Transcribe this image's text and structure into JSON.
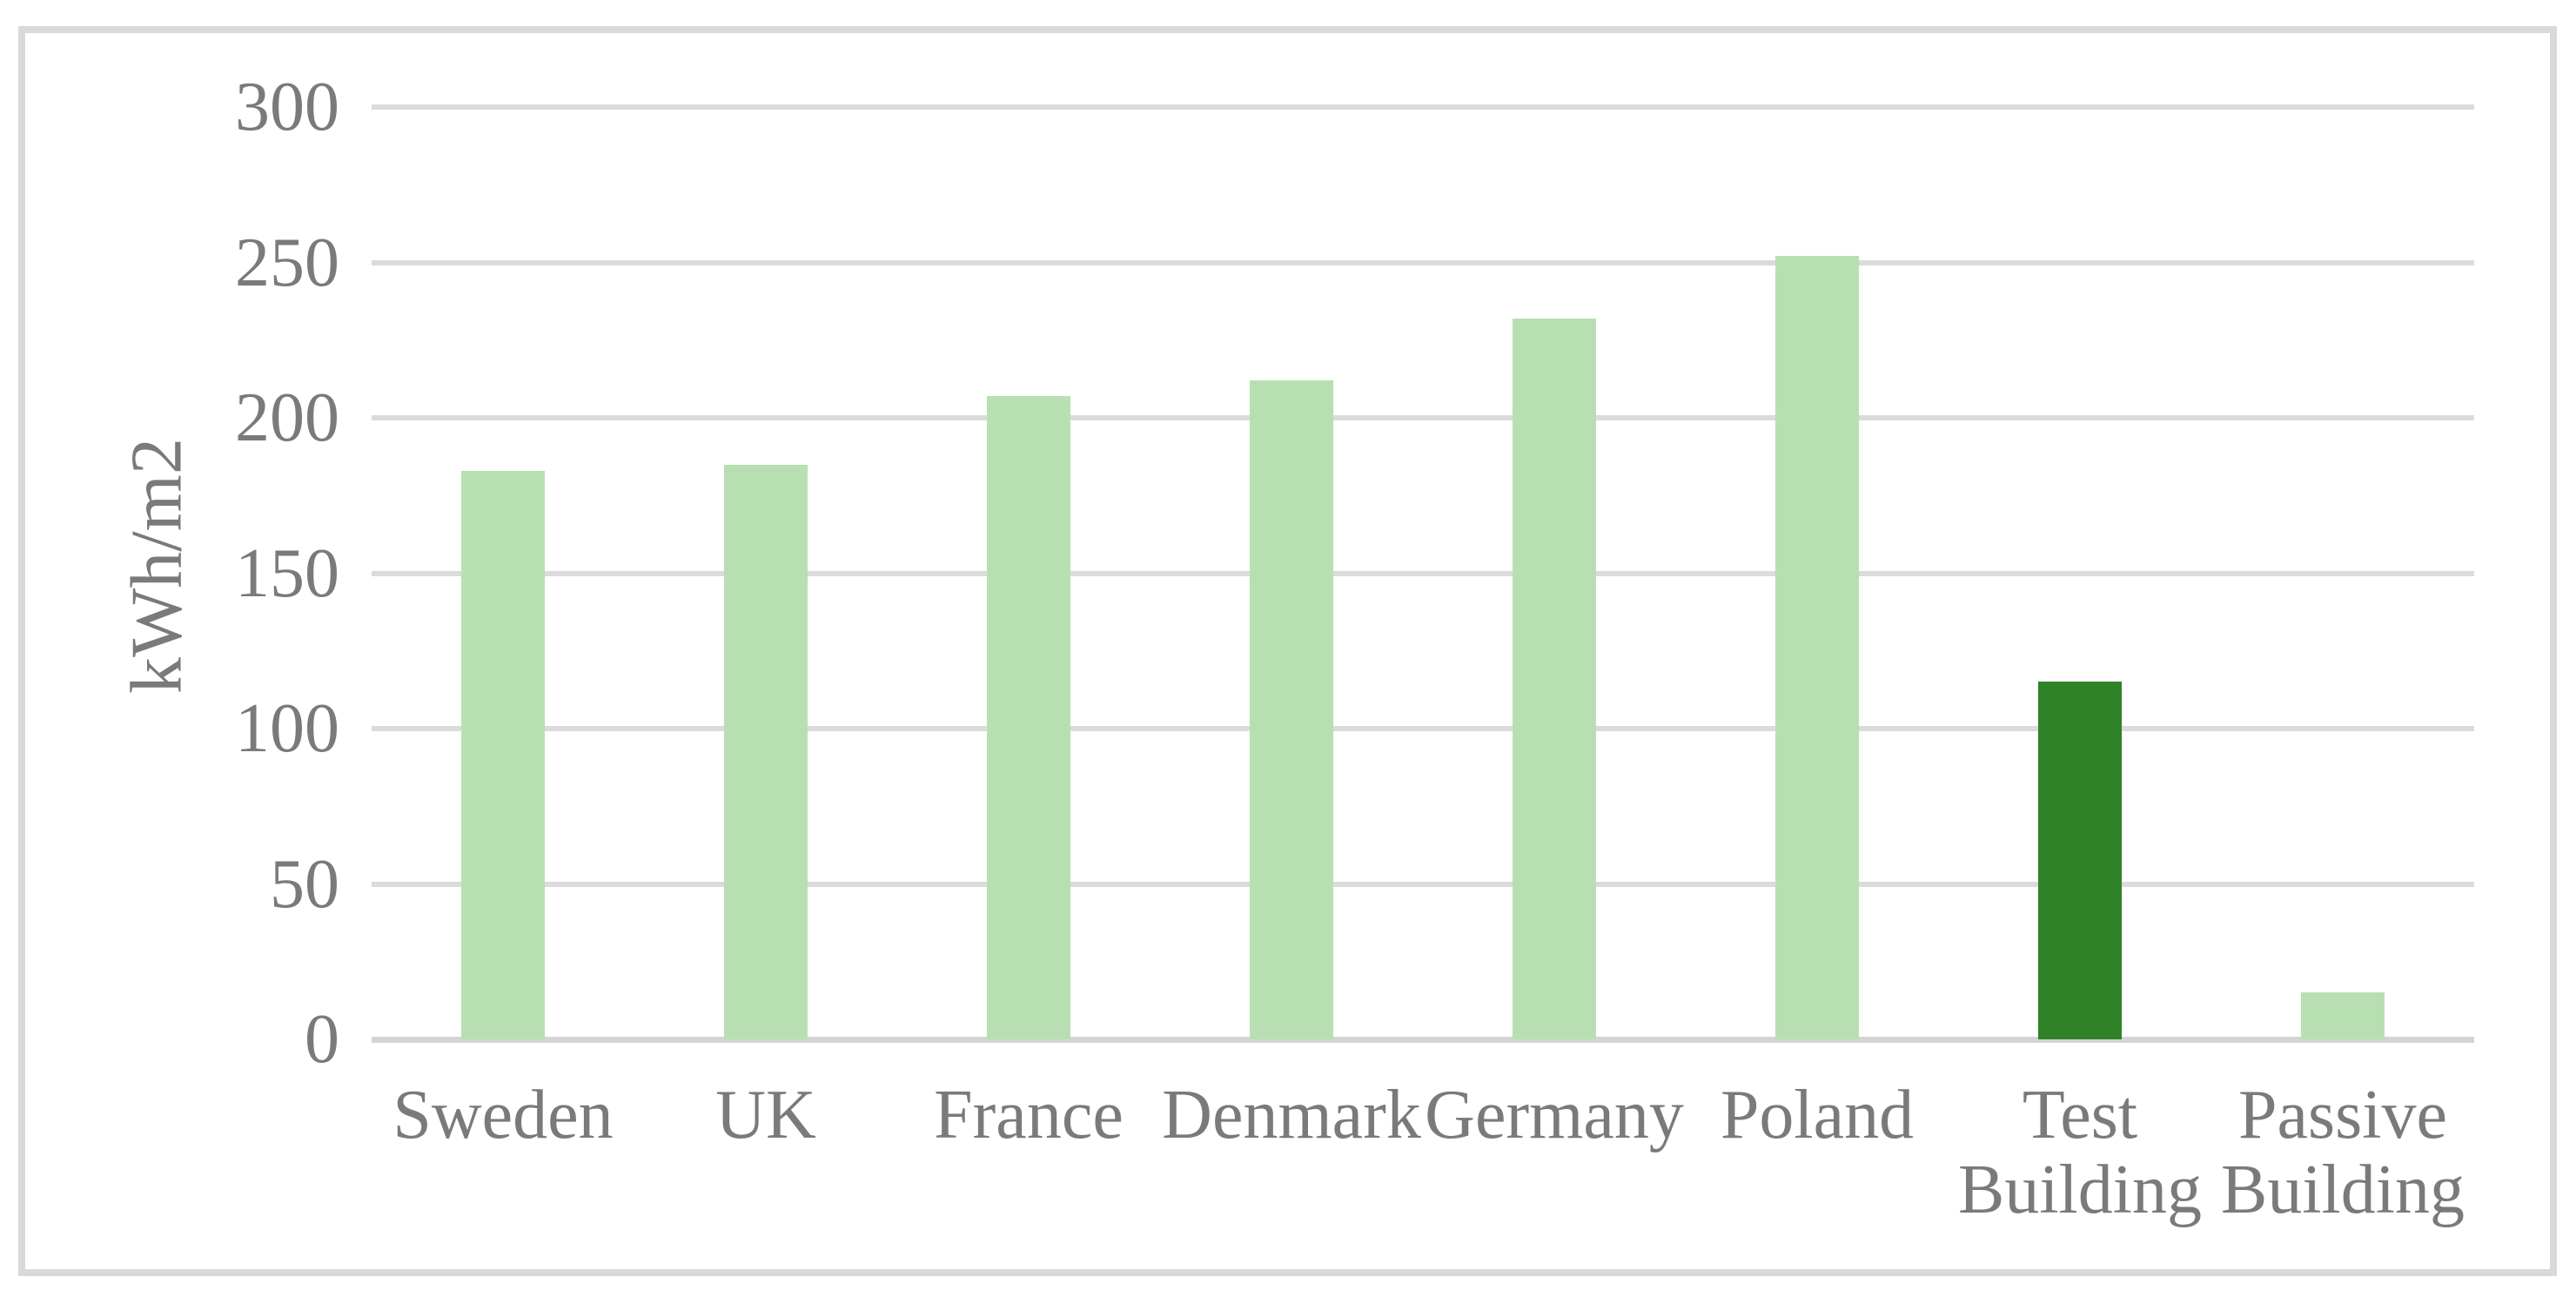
{
  "chart_data": {
    "type": "bar",
    "title": "",
    "ylabel": "kWh/m2",
    "xlabel": "",
    "categories": [
      "Sweden",
      "UK",
      "France",
      "Denmark",
      "Germany",
      "Poland",
      "Test Building",
      "Passive Building"
    ],
    "values": [
      183,
      185,
      207,
      212,
      232,
      252,
      115,
      15
    ],
    "ylim": [
      0,
      300
    ],
    "yticks": [
      0,
      50,
      100,
      150,
      200,
      250,
      300
    ],
    "grid": true,
    "legend_position": "none",
    "highlight_index": 6,
    "colors": {
      "bar_default": "#b8dfb1",
      "bar_highlight": "#308227",
      "gridline": "#dbdbdb",
      "axis_line": "#d4d4d4",
      "text": "#7a7a7a",
      "frame_border": "#d9d9d9",
      "background": "#ffffff"
    }
  }
}
